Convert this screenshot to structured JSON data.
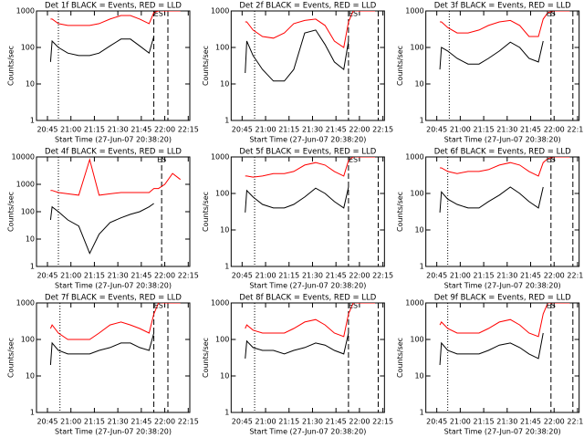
{
  "chart_data": [
    {
      "type": "line",
      "title": "Det 1f BLACK = Events, RED = LLD",
      "ylabel": "Counts/sec",
      "xlabel": "Start Time (27-Jun-07 20:38:20)",
      "log_y": true,
      "ylim": [
        1,
        1000
      ],
      "yticks": [
        1,
        10,
        100,
        1000
      ],
      "xlim": [
        "20:38",
        "22:16"
      ],
      "xticks": [
        "20:45",
        "21:00",
        "21:15",
        "21:30",
        "21:45",
        "22:00",
        "22:15"
      ],
      "x": [
        "20:47",
        "20:48",
        "20:52",
        "20:58",
        "21:05",
        "21:12",
        "21:18",
        "21:25",
        "21:32",
        "21:38",
        "21:44",
        "21:50",
        "21:53",
        "21:56",
        "22:00",
        "22:05",
        "22:10"
      ],
      "series": [
        {
          "name": "BLACK = Events",
          "color": "#000000",
          "values": [
            40,
            150,
            100,
            70,
            60,
            60,
            70,
            110,
            170,
            170,
            110,
            70,
            200,
            null,
            null,
            null,
            null
          ]
        },
        {
          "name": "RED = LLD",
          "color": "#ff0000",
          "values": [
            600,
            600,
            450,
            400,
            400,
            400,
            450,
            600,
            750,
            750,
            600,
            450,
            900,
            1000,
            1000,
            1000,
            1000
          ]
        }
      ],
      "vlines": [
        {
          "x": "20:52",
          "style": "dotted"
        },
        {
          "x": "21:53",
          "style": "dashed"
        },
        {
          "x": "22:02",
          "style": "dashed"
        }
      ],
      "annotation": {
        "x": "21:56",
        "text": "ES"
      }
    },
    {
      "type": "line",
      "title": "Det 2f BLACK = Events, RED = LLD",
      "ylabel": "Counts/sec",
      "xlabel": "Start Time (27-Jun-07 20:38:20)",
      "log_y": true,
      "ylim": [
        1,
        1000
      ],
      "yticks": [
        1,
        10,
        100,
        1000
      ],
      "xlim": [
        "20:38",
        "22:16"
      ],
      "xticks": [
        "20:45",
        "21:00",
        "21:15",
        "21:30",
        "21:45",
        "22:00",
        "22:15"
      ],
      "x": [
        "20:47",
        "20:48",
        "20:52",
        "20:58",
        "21:05",
        "21:12",
        "21:18",
        "21:25",
        "21:32",
        "21:38",
        "21:44",
        "21:50",
        "21:53",
        "21:56",
        "22:00",
        "22:05",
        "22:10"
      ],
      "series": [
        {
          "name": "BLACK = Events",
          "color": "#000000",
          "values": [
            20,
            150,
            60,
            25,
            12,
            12,
            25,
            250,
            300,
            120,
            40,
            25,
            150,
            null,
            null,
            null,
            null
          ]
        },
        {
          "name": "RED = LLD",
          "color": "#ff0000",
          "values": [
            500,
            500,
            300,
            200,
            180,
            250,
            450,
            550,
            600,
            400,
            150,
            100,
            500,
            1000,
            1000,
            1000,
            1000
          ]
        }
      ],
      "vlines": [
        {
          "x": "20:53",
          "style": "dotted"
        },
        {
          "x": "21:53",
          "style": "dashed"
        },
        {
          "x": "22:12",
          "style": "dashed"
        }
      ],
      "annotation": {
        "x": "21:56",
        "text": "ES"
      }
    },
    {
      "type": "line",
      "title": "Det 3f BLACK = Events, RED = LLD",
      "ylabel": "Counts/sec",
      "xlabel": "Start Time (27-Jun-07 20:38:20)",
      "log_y": true,
      "ylim": [
        1,
        1000
      ],
      "yticks": [
        1,
        10,
        100,
        1000
      ],
      "xlim": [
        "20:38",
        "22:16"
      ],
      "xticks": [
        "20:45",
        "21:00",
        "21:15",
        "21:30",
        "21:45",
        "22:00",
        "22:15"
      ],
      "x": [
        "20:47",
        "20:48",
        "20:52",
        "20:58",
        "21:05",
        "21:12",
        "21:18",
        "21:25",
        "21:32",
        "21:38",
        "21:44",
        "21:50",
        "21:53",
        "21:56",
        "22:00",
        "22:05",
        "22:10"
      ],
      "series": [
        {
          "name": "BLACK = Events",
          "color": "#000000",
          "values": [
            25,
            100,
            80,
            50,
            35,
            35,
            50,
            80,
            140,
            100,
            50,
            40,
            150,
            null,
            null,
            null,
            null
          ]
        },
        {
          "name": "RED = LLD",
          "color": "#ff0000",
          "values": [
            500,
            500,
            350,
            250,
            250,
            300,
            400,
            500,
            550,
            400,
            200,
            200,
            600,
            900,
            1000,
            1000,
            1000
          ]
        }
      ],
      "vlines": [
        {
          "x": "20:53",
          "style": "dotted"
        },
        {
          "x": "21:58",
          "style": "dashed"
        },
        {
          "x": "22:12",
          "style": "dashed"
        }
      ],
      "annotation": {
        "x": "21:58",
        "text": "ES"
      }
    },
    {
      "type": "line",
      "title": "Det 4f BLACK = Events, RED = LLD",
      "ylabel": "Counts/sec",
      "xlabel": "Start Time (27-Jun-07 20:38:20)",
      "log_y": true,
      "ylim": [
        1,
        10000
      ],
      "yticks": [
        1,
        10,
        100,
        1000,
        10000
      ],
      "xlim": [
        "20:38",
        "22:16"
      ],
      "xticks": [
        "20:45",
        "21:00",
        "21:15",
        "21:30",
        "21:45",
        "22:00",
        "22:15"
      ],
      "x": [
        "20:47",
        "20:48",
        "20:52",
        "20:58",
        "21:05",
        "21:12",
        "21:18",
        "21:25",
        "21:32",
        "21:38",
        "21:44",
        "21:50",
        "21:53",
        "21:56",
        "22:00",
        "22:05",
        "22:10"
      ],
      "series": [
        {
          "name": "BLACK = Events",
          "color": "#000000",
          "values": [
            50,
            150,
            100,
            50,
            30,
            3,
            15,
            40,
            60,
            80,
            100,
            150,
            200,
            null,
            null,
            null,
            null
          ]
        },
        {
          "name": "RED = LLD",
          "color": "#ff0000",
          "values": [
            600,
            600,
            500,
            450,
            400,
            8000,
            400,
            450,
            500,
            500,
            500,
            500,
            700,
            700,
            1000,
            2500,
            1500
          ]
        }
      ],
      "vlines": [
        {
          "x": "20:52",
          "style": "dotted"
        },
        {
          "x": "21:58",
          "style": "dashed"
        }
      ],
      "annotation": {
        "x": "21:58",
        "text": "ES"
      }
    },
    {
      "type": "line",
      "title": "Det 5f BLACK = Events, RED = LLD",
      "ylabel": "Counts/sec",
      "xlabel": "Start Time (27-Jun-07 20:38:20)",
      "log_y": true,
      "ylim": [
        1,
        1000
      ],
      "yticks": [
        1,
        10,
        100,
        1000
      ],
      "xlim": [
        "20:38",
        "22:16"
      ],
      "xticks": [
        "20:45",
        "21:00",
        "21:15",
        "21:30",
        "21:45",
        "22:00",
        "22:15"
      ],
      "x": [
        "20:47",
        "20:48",
        "20:52",
        "20:58",
        "21:05",
        "21:12",
        "21:18",
        "21:25",
        "21:32",
        "21:38",
        "21:44",
        "21:50",
        "21:53",
        "21:56",
        "22:00",
        "22:05",
        "22:10"
      ],
      "series": [
        {
          "name": "BLACK = Events",
          "color": "#000000",
          "values": [
            30,
            120,
            80,
            50,
            40,
            40,
            50,
            80,
            140,
            100,
            60,
            40,
            150,
            null,
            null,
            null,
            null
          ]
        },
        {
          "name": "RED = LLD",
          "color": "#ff0000",
          "values": [
            300,
            300,
            280,
            300,
            350,
            350,
            400,
            600,
            700,
            600,
            400,
            300,
            800,
            1000,
            1000,
            1000,
            1000
          ]
        }
      ],
      "vlines": [
        {
          "x": "20:53",
          "style": "dotted"
        },
        {
          "x": "21:53",
          "style": "dashed"
        },
        {
          "x": "22:12",
          "style": "dashed"
        }
      ],
      "annotation": {
        "x": "21:56",
        "text": "ES"
      }
    },
    {
      "type": "line",
      "title": "Det 6f BLACK = Events, RED = LLD",
      "ylabel": "Counts/sec",
      "xlabel": "Start Time (27-Jun-07 20:38:20)",
      "log_y": true,
      "ylim": [
        1,
        1000
      ],
      "yticks": [
        1,
        10,
        100,
        1000
      ],
      "xlim": [
        "20:38",
        "22:16"
      ],
      "xticks": [
        "20:45",
        "21:00",
        "21:15",
        "21:30",
        "21:45",
        "22:00",
        "22:15"
      ],
      "x": [
        "20:47",
        "20:48",
        "20:52",
        "20:58",
        "21:05",
        "21:12",
        "21:18",
        "21:25",
        "21:32",
        "21:38",
        "21:44",
        "21:50",
        "21:53",
        "21:56",
        "22:00",
        "22:05",
        "22:10"
      ],
      "series": [
        {
          "name": "BLACK = Events",
          "color": "#000000",
          "values": [
            30,
            110,
            70,
            50,
            40,
            40,
            60,
            90,
            150,
            100,
            60,
            40,
            150,
            null,
            null,
            null,
            null
          ]
        },
        {
          "name": "RED = LLD",
          "color": "#ff0000",
          "values": [
            500,
            500,
            400,
            350,
            400,
            400,
            450,
            600,
            700,
            600,
            400,
            300,
            700,
            900,
            1000,
            1000,
            1000
          ]
        }
      ],
      "vlines": [
        {
          "x": "20:52",
          "style": "dotted"
        },
        {
          "x": "21:58",
          "style": "dashed"
        },
        {
          "x": "22:12",
          "style": "dashed"
        }
      ],
      "annotation": {
        "x": "21:58",
        "text": "ES"
      }
    },
    {
      "type": "line",
      "title": "Det 7f BLACK = Events, RED = LLD",
      "ylabel": "Counts/sec",
      "xlabel": "Start Time (27-Jun-07 20:38:20)",
      "log_y": true,
      "ylim": [
        1,
        1000
      ],
      "yticks": [
        1,
        10,
        100,
        1000
      ],
      "xlim": [
        "20:38",
        "22:16"
      ],
      "xticks": [
        "20:45",
        "21:00",
        "21:15",
        "21:30",
        "21:45",
        "22:00",
        "22:15"
      ],
      "x": [
        "20:47",
        "20:48",
        "20:52",
        "20:58",
        "21:05",
        "21:12",
        "21:18",
        "21:25",
        "21:32",
        "21:38",
        "21:44",
        "21:50",
        "21:53",
        "21:56",
        "22:00",
        "22:05",
        "22:10"
      ],
      "series": [
        {
          "name": "BLACK = Events",
          "color": "#000000",
          "values": [
            20,
            80,
            50,
            40,
            40,
            40,
            50,
            60,
            80,
            80,
            60,
            50,
            150,
            null,
            null,
            null,
            null
          ]
        },
        {
          "name": "RED = LLD",
          "color": "#ff0000",
          "values": [
            200,
            250,
            150,
            100,
            100,
            100,
            150,
            250,
            300,
            250,
            200,
            150,
            500,
            1000,
            1000,
            1000,
            1000
          ]
        }
      ],
      "vlines": [
        {
          "x": "20:53",
          "style": "dotted"
        },
        {
          "x": "21:53",
          "style": "dashed"
        },
        {
          "x": "22:02",
          "style": "dashed"
        }
      ],
      "annotation": {
        "x": "21:56",
        "text": "ES"
      }
    },
    {
      "type": "line",
      "title": "Det 8f BLACK = Events, RED = LLD",
      "ylabel": "Counts/sec",
      "xlabel": "Start Time (27-Jun-07 20:38:20)",
      "log_y": true,
      "ylim": [
        1,
        1000
      ],
      "yticks": [
        1,
        10,
        100,
        1000
      ],
      "xlim": [
        "20:38",
        "22:16"
      ],
      "xticks": [
        "20:45",
        "21:00",
        "21:15",
        "21:30",
        "21:45",
        "22:00",
        "22:15"
      ],
      "x": [
        "20:47",
        "20:48",
        "20:52",
        "20:58",
        "21:05",
        "21:12",
        "21:18",
        "21:25",
        "21:32",
        "21:38",
        "21:44",
        "21:50",
        "21:53",
        "21:56",
        "22:00",
        "22:05",
        "22:10"
      ],
      "series": [
        {
          "name": "BLACK = Events",
          "color": "#000000",
          "values": [
            30,
            90,
            60,
            50,
            50,
            40,
            50,
            60,
            80,
            70,
            50,
            40,
            150,
            null,
            null,
            null,
            null
          ]
        },
        {
          "name": "RED = LLD",
          "color": "#ff0000",
          "values": [
            200,
            250,
            180,
            150,
            150,
            150,
            200,
            300,
            350,
            250,
            150,
            120,
            500,
            1000,
            1000,
            1000,
            1000
          ]
        }
      ],
      "vlines": [
        {
          "x": "20:53",
          "style": "dotted"
        },
        {
          "x": "21:53",
          "style": "dashed"
        },
        {
          "x": "22:12",
          "style": "dashed"
        }
      ],
      "annotation": {
        "x": "21:56",
        "text": "ES"
      }
    },
    {
      "type": "line",
      "title": "Det 9f BLACK = Events, RED = LLD",
      "ylabel": "Counts/sec",
      "xlabel": "Start Time (27-Jun-07 20:38:20)",
      "log_y": true,
      "ylim": [
        1,
        1000
      ],
      "yticks": [
        1,
        10,
        100,
        1000
      ],
      "xlim": [
        "20:38",
        "22:16"
      ],
      "xticks": [
        "20:45",
        "21:00",
        "21:15",
        "21:30",
        "21:45",
        "22:00",
        "22:15"
      ],
      "x": [
        "20:47",
        "20:48",
        "20:52",
        "20:58",
        "21:05",
        "21:12",
        "21:18",
        "21:25",
        "21:32",
        "21:38",
        "21:44",
        "21:50",
        "21:53",
        "21:56",
        "22:00",
        "22:05",
        "22:10"
      ],
      "series": [
        {
          "name": "BLACK = Events",
          "color": "#000000",
          "values": [
            20,
            80,
            50,
            40,
            40,
            40,
            50,
            70,
            80,
            60,
            40,
            30,
            150,
            null,
            null,
            null,
            null
          ]
        },
        {
          "name": "RED = LLD",
          "color": "#ff0000",
          "values": [
            250,
            300,
            200,
            150,
            150,
            150,
            200,
            300,
            350,
            250,
            150,
            120,
            500,
            1000,
            1000,
            1000,
            1000
          ]
        }
      ],
      "vlines": [
        {
          "x": "20:52",
          "style": "dotted"
        },
        {
          "x": "21:58",
          "style": "dashed"
        },
        {
          "x": "22:12",
          "style": "dashed"
        }
      ],
      "annotation": {
        "x": "21:58",
        "text": "ES"
      }
    }
  ]
}
